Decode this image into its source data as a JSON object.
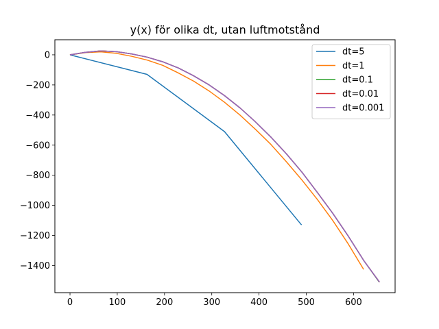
{
  "chart_data": {
    "type": "line",
    "title": "y(x) för olika dt, utan luftmotstånd",
    "xlabel": "",
    "ylabel": "",
    "xlim": [
      -32,
      688
    ],
    "ylim": [
      -1580,
      100
    ],
    "xticks": [
      0,
      100,
      200,
      300,
      400,
      500,
      600
    ],
    "yticks": [
      0,
      -200,
      -400,
      -600,
      -800,
      -1000,
      -1200,
      -1400
    ],
    "x_tick_labels": [
      "0",
      "100",
      "200",
      "300",
      "400",
      "500",
      "600"
    ],
    "y_tick_labels": [
      "0",
      "−200",
      "−400",
      "−600",
      "−800",
      "−1000",
      "−1200",
      "−1400"
    ],
    "grid": false,
    "legend_position": "top-right",
    "series": [
      {
        "name": "dt=5",
        "color": "#1f77b4",
        "points": [
          [
            0,
            0
          ],
          [
            163,
            -130
          ],
          [
            327,
            -510
          ],
          [
            490,
            -1130
          ]
        ]
      },
      {
        "name": "dt=1",
        "color": "#ff7f0e",
        "points": [
          [
            0,
            0
          ],
          [
            32.7,
            15
          ],
          [
            65.4,
            20
          ],
          [
            98.1,
            10
          ],
          [
            130.8,
            -10
          ],
          [
            163.5,
            -35
          ],
          [
            196.2,
            -70
          ],
          [
            228.9,
            -120
          ],
          [
            261.6,
            -175
          ],
          [
            294.3,
            -240
          ],
          [
            327,
            -315
          ],
          [
            359.7,
            -400
          ],
          [
            392.4,
            -495
          ],
          [
            425.1,
            -595
          ],
          [
            457.8,
            -710
          ],
          [
            490.5,
            -830
          ],
          [
            523.2,
            -960
          ],
          [
            555.9,
            -1100
          ],
          [
            588.6,
            -1255
          ],
          [
            621.3,
            -1425
          ]
        ]
      },
      {
        "name": "dt=0.1",
        "color": "#2ca02c",
        "points": [
          [
            0,
            0
          ],
          [
            32,
            16
          ],
          [
            65,
            26
          ],
          [
            98,
            21
          ],
          [
            130,
            6
          ],
          [
            163,
            -15
          ],
          [
            196,
            -46
          ],
          [
            229,
            -87
          ],
          [
            261,
            -138
          ],
          [
            294,
            -199
          ],
          [
            327,
            -271
          ],
          [
            360,
            -353
          ],
          [
            392,
            -444
          ],
          [
            425,
            -546
          ],
          [
            458,
            -658
          ],
          [
            491,
            -780
          ],
          [
            523,
            -912
          ],
          [
            556,
            -1053
          ],
          [
            589,
            -1205
          ],
          [
            622,
            -1368
          ],
          [
            654,
            -1508
          ]
        ]
      },
      {
        "name": "dt=0.01",
        "color": "#d62728",
        "points": [
          [
            0,
            0
          ],
          [
            32,
            16
          ],
          [
            65,
            26
          ],
          [
            98,
            21
          ],
          [
            130,
            6
          ],
          [
            163,
            -15
          ],
          [
            196,
            -46
          ],
          [
            229,
            -87
          ],
          [
            261,
            -138
          ],
          [
            294,
            -199
          ],
          [
            327,
            -271
          ],
          [
            360,
            -353
          ],
          [
            392,
            -444
          ],
          [
            425,
            -546
          ],
          [
            458,
            -658
          ],
          [
            491,
            -780
          ],
          [
            523,
            -912
          ],
          [
            556,
            -1053
          ],
          [
            589,
            -1205
          ],
          [
            622,
            -1368
          ],
          [
            655,
            -1510
          ]
        ]
      },
      {
        "name": "dt=0.001",
        "color": "#9467bd",
        "points": [
          [
            0,
            0
          ],
          [
            32,
            16
          ],
          [
            65,
            26
          ],
          [
            98,
            21
          ],
          [
            130,
            6
          ],
          [
            163,
            -15
          ],
          [
            196,
            -46
          ],
          [
            229,
            -87
          ],
          [
            261,
            -138
          ],
          [
            294,
            -199
          ],
          [
            327,
            -271
          ],
          [
            360,
            -353
          ],
          [
            392,
            -444
          ],
          [
            425,
            -546
          ],
          [
            458,
            -658
          ],
          [
            491,
            -780
          ],
          [
            523,
            -912
          ],
          [
            556,
            -1053
          ],
          [
            589,
            -1205
          ],
          [
            622,
            -1368
          ],
          [
            655,
            -1510
          ]
        ]
      }
    ]
  }
}
